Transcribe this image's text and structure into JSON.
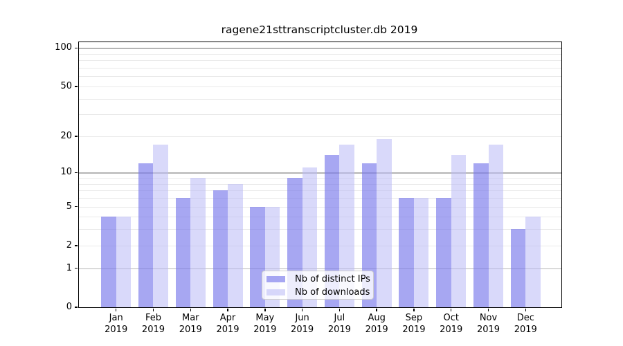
{
  "title": "ragene21sttranscriptcluster.db 2019",
  "chart_data": {
    "type": "bar",
    "title": "ragene21sttranscriptcluster.db 2019",
    "categories": [
      "Jan 2019",
      "Feb 2019",
      "Mar 2019",
      "Apr 2019",
      "May 2019",
      "Jun 2019",
      "Jul 2019",
      "Aug 2019",
      "Sep 2019",
      "Oct 2019",
      "Nov 2019",
      "Dec 2019"
    ],
    "x_tick_months": [
      "Jan",
      "Feb",
      "Mar",
      "Apr",
      "May",
      "Jun",
      "Jul",
      "Aug",
      "Sep",
      "Oct",
      "Nov",
      "Dec"
    ],
    "x_tick_year": "2019",
    "series": [
      {
        "name": "Nb of distinct IPs",
        "color": "rgba(120,120,235,0.65)",
        "values": [
          4,
          12,
          6,
          7,
          5,
          9,
          14,
          12,
          6,
          6,
          12,
          3
        ]
      },
      {
        "name": "Nb of downloads",
        "color": "rgba(185,185,245,0.55)",
        "values": [
          4,
          17,
          9,
          8,
          5,
          11,
          17,
          19,
          6,
          14,
          17,
          4
        ]
      }
    ],
    "xlabel": "",
    "ylabel": "",
    "y_scale": "log1p",
    "ylim": [
      0,
      111
    ],
    "y_ticks": [
      100,
      50,
      20,
      10,
      5,
      2,
      1,
      0
    ],
    "y_minor_gridlines": [
      2,
      3,
      4,
      5,
      6,
      7,
      8,
      9,
      20,
      30,
      40,
      50,
      60,
      70,
      80,
      90
    ],
    "y_major_gridlines": [
      1,
      10,
      100
    ],
    "grid": true,
    "legend_position": "lower center",
    "colors": {
      "distinct_ips_bar": "#a7a7f2",
      "downloads_bar": "#d9d9fa",
      "major_gridline": "#b5b5b5",
      "minor_gridline": "#e9e9e9",
      "axis": "#000000"
    }
  }
}
